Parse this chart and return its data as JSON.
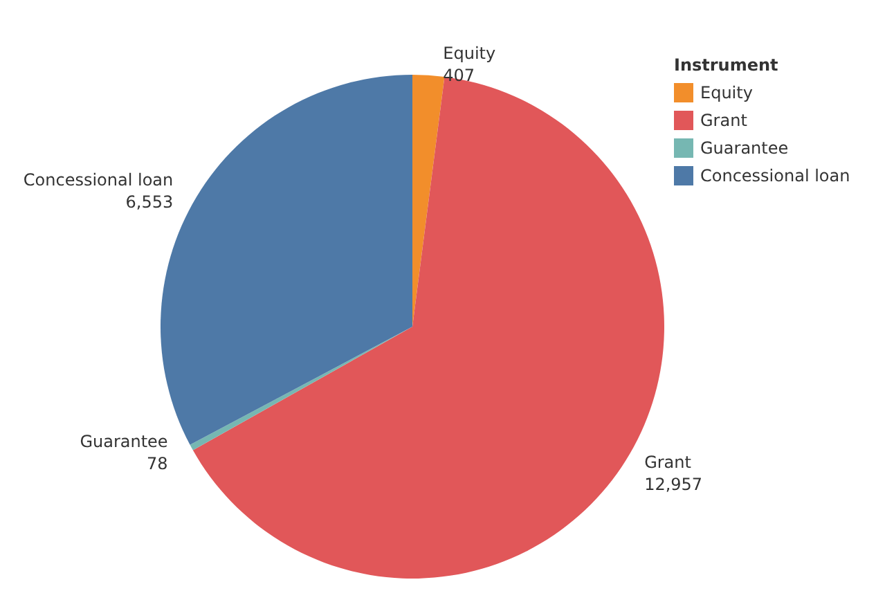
{
  "chart_data": {
    "type": "pie",
    "legend_title": "Instrument",
    "legend": "top right",
    "value_labels": [
      "407",
      "12,957",
      "78",
      "6,553"
    ],
    "categories": [
      "Equity",
      "Grant",
      "Guarantee",
      "Concessional loan"
    ],
    "values": [
      407,
      12957,
      78,
      6553
    ],
    "colors": [
      "#f28e2b",
      "#e15759",
      "#76b7b2",
      "#4e79a7"
    ]
  }
}
